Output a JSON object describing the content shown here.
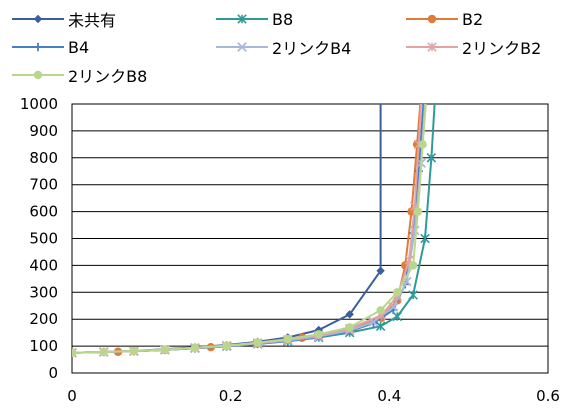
{
  "chart_data": {
    "type": "line",
    "xlim": [
      0,
      0.6
    ],
    "ylim": [
      0,
      1000
    ],
    "xticks": [
      "0",
      "0.2",
      "0.4",
      "0.6"
    ],
    "yticks": [
      "0",
      "100",
      "200",
      "300",
      "400",
      "500",
      "600",
      "700",
      "800",
      "900",
      "1000"
    ],
    "grid": "horizontal",
    "legend_position": "top",
    "series": [
      {
        "name": "未共有",
        "color": "#3B5E9C",
        "marker": "diamond",
        "points": [
          [
            0,
            75
          ],
          [
            0.04,
            78
          ],
          [
            0.078,
            82
          ],
          [
            0.117,
            88
          ],
          [
            0.155,
            96
          ],
          [
            0.195,
            104
          ],
          [
            0.234,
            116
          ],
          [
            0.272,
            132
          ],
          [
            0.311,
            160
          ],
          [
            0.35,
            218
          ],
          [
            0.389,
            380
          ],
          [
            0.389,
            1000
          ]
        ]
      },
      {
        "name": "B8",
        "color": "#2E9A9A",
        "marker": "asterisk",
        "points": [
          [
            0,
            75
          ],
          [
            0.04,
            78
          ],
          [
            0.078,
            81
          ],
          [
            0.117,
            86
          ],
          [
            0.155,
            92
          ],
          [
            0.195,
            99
          ],
          [
            0.234,
            108
          ],
          [
            0.272,
            118
          ],
          [
            0.311,
            132
          ],
          [
            0.35,
            150
          ],
          [
            0.389,
            174
          ],
          [
            0.41,
            210
          ],
          [
            0.43,
            290
          ],
          [
            0.445,
            500
          ],
          [
            0.453,
            800
          ],
          [
            0.457,
            1000
          ]
        ]
      },
      {
        "name": "B2",
        "color": "#E07B39",
        "marker": "circle",
        "points": [
          [
            0,
            75
          ],
          [
            0.058,
            79
          ],
          [
            0.117,
            86
          ],
          [
            0.175,
            96
          ],
          [
            0.233,
            111
          ],
          [
            0.29,
            131
          ],
          [
            0.35,
            160
          ],
          [
            0.39,
            205
          ],
          [
            0.41,
            270
          ],
          [
            0.42,
            400
          ],
          [
            0.428,
            600
          ],
          [
            0.435,
            850
          ],
          [
            0.439,
            1000
          ]
        ]
      },
      {
        "name": "B4",
        "color": "#4A7EC2",
        "marker": "plus",
        "points": [
          [
            0,
            75
          ],
          [
            0.04,
            78
          ],
          [
            0.078,
            81
          ],
          [
            0.117,
            86
          ],
          [
            0.155,
            92
          ],
          [
            0.195,
            99
          ],
          [
            0.234,
            108
          ],
          [
            0.272,
            119
          ],
          [
            0.311,
            134
          ],
          [
            0.35,
            155
          ],
          [
            0.38,
            185
          ],
          [
            0.405,
            235
          ],
          [
            0.42,
            330
          ],
          [
            0.43,
            520
          ],
          [
            0.437,
            750
          ],
          [
            0.443,
            1000
          ]
        ]
      },
      {
        "name": "2リンクB4",
        "color": "#A9B7DA",
        "marker": "x",
        "points": [
          [
            0,
            75
          ],
          [
            0.04,
            78
          ],
          [
            0.078,
            81
          ],
          [
            0.117,
            86
          ],
          [
            0.155,
            93
          ],
          [
            0.195,
            100
          ],
          [
            0.234,
            110
          ],
          [
            0.272,
            121
          ],
          [
            0.311,
            136
          ],
          [
            0.35,
            158
          ],
          [
            0.38,
            190
          ],
          [
            0.405,
            245
          ],
          [
            0.422,
            340
          ],
          [
            0.432,
            530
          ],
          [
            0.44,
            780
          ],
          [
            0.445,
            1000
          ]
        ]
      },
      {
        "name": "2リンクB2",
        "color": "#E2A3A3",
        "marker": "asterisk",
        "points": [
          [
            0,
            75
          ],
          [
            0.04,
            78
          ],
          [
            0.078,
            81
          ],
          [
            0.117,
            87
          ],
          [
            0.155,
            94
          ],
          [
            0.195,
            102
          ],
          [
            0.234,
            112
          ],
          [
            0.272,
            124
          ],
          [
            0.311,
            140
          ],
          [
            0.35,
            165
          ],
          [
            0.39,
            215
          ],
          [
            0.41,
            285
          ],
          [
            0.425,
            420
          ],
          [
            0.432,
            620
          ],
          [
            0.437,
            850
          ],
          [
            0.44,
            1000
          ]
        ]
      },
      {
        "name": "2リンクB8",
        "color": "#B9D78C",
        "marker": "circle",
        "points": [
          [
            0,
            75
          ],
          [
            0.04,
            78
          ],
          [
            0.078,
            82
          ],
          [
            0.117,
            87
          ],
          [
            0.155,
            94
          ],
          [
            0.195,
            102
          ],
          [
            0.234,
            113
          ],
          [
            0.272,
            126
          ],
          [
            0.311,
            144
          ],
          [
            0.35,
            170
          ],
          [
            0.389,
            233
          ],
          [
            0.41,
            300
          ],
          [
            0.43,
            400
          ],
          [
            0.436,
            600
          ],
          [
            0.442,
            850
          ],
          [
            0.446,
            1000
          ]
        ]
      }
    ]
  }
}
